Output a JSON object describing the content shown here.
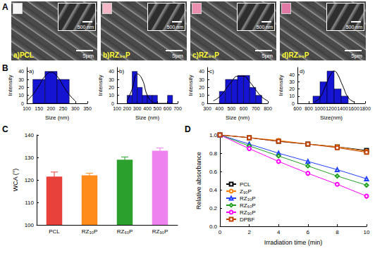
{
  "panels": [
    "A",
    "B",
    "C",
    "D"
  ],
  "images": [
    {
      "label": "a)PCL",
      "scale_bar": "5μm",
      "inset_scale_bar": "500 nm"
    },
    {
      "label": "b)RZ₃₀P",
      "scale_bar": "5μm",
      "inset_scale_bar": "500 nm"
    },
    {
      "label": "c)RZ₆₀P",
      "scale_bar": "5μm",
      "inset_scale_bar": "500 nm"
    },
    {
      "label": "d)RZ₉₀P",
      "scale_bar": "5μm",
      "inset_scale_bar": "500 nm"
    }
  ],
  "chart_data": [
    {
      "type": "histogram",
      "title": "a)",
      "xlabel": "Size (nm)",
      "ylabel": "Intensity",
      "bins": [
        125,
        175,
        225,
        275
      ],
      "counts": [
        30,
        40,
        30
      ],
      "fit": {
        "x": [
          100,
          125,
          150,
          175,
          200,
          225,
          250,
          275,
          300
        ],
        "y": [
          3,
          11,
          22,
          34,
          39,
          34,
          22,
          11,
          3
        ]
      },
      "xlim": [
        100,
        350
      ],
      "xticks": [
        100,
        150,
        200,
        250,
        300,
        350
      ],
      "ylim": [
        0,
        45
      ],
      "yticks": [
        0,
        10,
        20,
        30,
        40
      ],
      "color": "#1414d2",
      "grid": false
    },
    {
      "type": "histogram",
      "title": "b)",
      "xlabel": "Size (nm)",
      "ylabel": "Intensity",
      "bins": [
        200,
        250,
        300,
        350,
        400,
        450,
        500,
        550,
        600,
        650
      ],
      "counts": [
        10,
        40,
        20,
        10,
        10,
        10,
        0,
        0,
        10
      ],
      "fit": {
        "x": [
          200,
          250,
          300,
          350,
          400,
          450,
          500
        ],
        "y": [
          3,
          18,
          37,
          30,
          10,
          2,
          0
        ]
      },
      "xlim": [
        100,
        700
      ],
      "xticks": [
        100,
        200,
        300,
        400,
        500,
        600,
        700
      ],
      "ylim": [
        0,
        45
      ],
      "yticks": [
        0,
        10,
        20,
        30,
        40
      ],
      "color": "#1414d2",
      "grid": false
    },
    {
      "type": "histogram",
      "title": "c)",
      "xlabel": "Size (nm)",
      "ylabel": "Intensity",
      "bins": [
        400,
        450,
        500,
        550,
        600,
        650,
        700,
        750
      ],
      "counts": [
        15,
        30,
        30,
        35,
        35,
        20,
        10
      ],
      "fit": {
        "x": [
          350,
          400,
          450,
          500,
          550,
          600,
          650,
          700,
          750,
          800
        ],
        "y": [
          3,
          8,
          17,
          27,
          34,
          34,
          27,
          17,
          8,
          3
        ]
      },
      "xlim": [
        300,
        800
      ],
      "xticks": [
        300,
        400,
        500,
        600,
        700,
        800
      ],
      "ylim": [
        0,
        45
      ],
      "yticks": [
        0,
        10,
        20,
        30,
        40
      ],
      "color": "#1414d2",
      "grid": false
    },
    {
      "type": "histogram",
      "title": "d)",
      "xlabel": "Size(nm)",
      "ylabel": "Intensity",
      "bins": [
        875,
        1000,
        1125,
        1250,
        1375,
        1500
      ],
      "counts": [
        10,
        30,
        45,
        20,
        10
      ],
      "fit": {
        "x": [
          900,
          1000,
          1100,
          1200,
          1250,
          1300,
          1400,
          1500,
          1600
        ],
        "y": [
          2,
          8,
          25,
          42,
          45,
          42,
          25,
          8,
          2
        ]
      },
      "xlim": [
        600,
        1800
      ],
      "xticks": [
        600,
        800,
        1000,
        1200,
        1400,
        1600,
        1800
      ],
      "ylim": [
        0,
        50
      ],
      "yticks": [
        0,
        10,
        20,
        30,
        40
      ],
      "color": "#1414d2",
      "grid": false
    },
    {
      "type": "bar",
      "ylabel": "WCA (°)",
      "categories": [
        "PCL",
        "RZ₃₀P",
        "RZ₆₀P",
        "RZ₉₀P"
      ],
      "values": [
        121.5,
        122,
        129,
        133
      ],
      "errors": [
        2,
        1,
        1.2,
        1.2
      ],
      "colors": [
        "#e8413c",
        "#ff8c1a",
        "#2ca02c",
        "#ee82ee"
      ],
      "ylim": [
        100,
        140
      ],
      "yticks": [
        100,
        110,
        120,
        130,
        140
      ],
      "grid": false
    },
    {
      "type": "line",
      "xlabel": "Irradiation time (min)",
      "ylabel": "Relative absorbance",
      "x": [
        0,
        2,
        4,
        6,
        8,
        10
      ],
      "series": [
        {
          "name": "PCL",
          "color": "#000000",
          "marker": "square",
          "values": [
            1.0,
            0.97,
            0.93,
            0.9,
            0.87,
            0.83
          ]
        },
        {
          "name": "Z₉₀P",
          "color": "#ff8000",
          "marker": "circle",
          "values": [
            1.0,
            0.97,
            0.94,
            0.9,
            0.87,
            0.82
          ]
        },
        {
          "name": "RZ₃₀P",
          "color": "#2040ff",
          "marker": "triangle",
          "values": [
            1.0,
            0.9,
            0.8,
            0.71,
            0.62,
            0.52
          ]
        },
        {
          "name": "RZ₆₀P",
          "color": "#20a020",
          "marker": "diamond",
          "values": [
            1.0,
            0.88,
            0.77,
            0.66,
            0.55,
            0.45
          ]
        },
        {
          "name": "RZ₉₀P",
          "color": "#ff00ff",
          "marker": "circle",
          "values": [
            1.0,
            0.85,
            0.71,
            0.58,
            0.46,
            0.33
          ]
        },
        {
          "name": "DPBF",
          "color": "#c04000",
          "marker": "square",
          "values": [
            1.0,
            0.97,
            0.93,
            0.9,
            0.86,
            0.81
          ]
        }
      ],
      "xlim": [
        0,
        10
      ],
      "xticks": [
        0,
        2,
        4,
        6,
        8,
        10
      ],
      "ylim": [
        0,
        1
      ],
      "yticks": [
        {
          "value": 0,
          "label": "0.0"
        },
        {
          "value": 0.2,
          "label": "0.2"
        },
        {
          "value": 0.4,
          "label": "0.4"
        },
        {
          "value": 0.6,
          "label": "0.6"
        },
        {
          "value": 0.8,
          "label": "0.8"
        },
        {
          "value": 1,
          "label": "1.0"
        }
      ],
      "legend": "lower left",
      "grid": false
    }
  ]
}
